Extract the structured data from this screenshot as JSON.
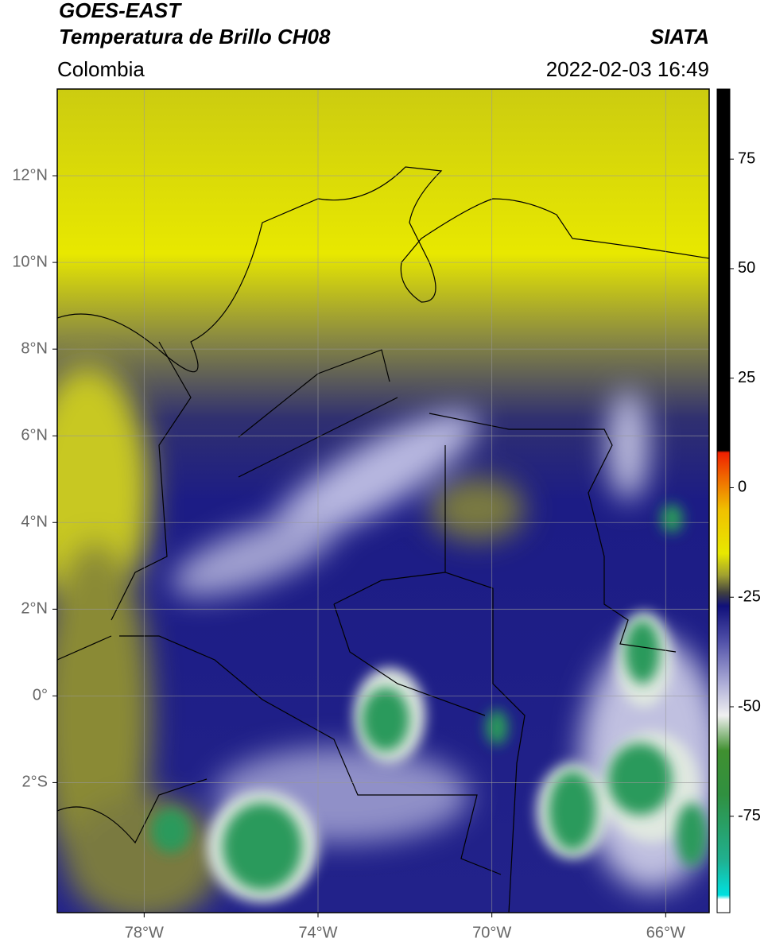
{
  "header": {
    "title": "GOES-EAST",
    "subtitle": "Temperatura de Brillo CH08",
    "source": "SIATA",
    "region": "Colombia",
    "timestamp": "2022-02-03 16:49"
  },
  "map": {
    "xlim": [
      -80,
      -65
    ],
    "ylim": [
      -5,
      14
    ],
    "grid": true,
    "lon_ticks": [
      {
        "value": -78,
        "label": "78°W"
      },
      {
        "value": -74,
        "label": "74°W"
      },
      {
        "value": -70,
        "label": "70°W"
      },
      {
        "value": -66,
        "label": "66°W"
      }
    ],
    "lat_ticks": [
      {
        "value": 12,
        "label": "12°N"
      },
      {
        "value": 10,
        "label": "10°N"
      },
      {
        "value": 8,
        "label": "8°N"
      },
      {
        "value": 6,
        "label": "6°N"
      },
      {
        "value": 4,
        "label": "4°N"
      },
      {
        "value": 2,
        "label": "2°N"
      },
      {
        "value": 0,
        "label": "0°"
      },
      {
        "value": -2,
        "label": "2°S"
      }
    ]
  },
  "colorbar": {
    "lim": [
      -97,
      91
    ],
    "ticks": [
      75,
      50,
      25,
      0,
      -25,
      -50,
      -75
    ],
    "stops": [
      {
        "value": -97,
        "color": "#ffffff"
      },
      {
        "value": -94,
        "color": "#ffffff"
      },
      {
        "value": -93,
        "color": "#00e0e0"
      },
      {
        "value": -85,
        "color": "#20b090"
      },
      {
        "value": -70,
        "color": "#309040"
      },
      {
        "value": -60,
        "color": "#409030"
      },
      {
        "value": -52,
        "color": "#f0f0f0"
      },
      {
        "value": -45,
        "color": "#b0b0d8"
      },
      {
        "value": -35,
        "color": "#5050a8"
      },
      {
        "value": -27,
        "color": "#10107a"
      },
      {
        "value": -24,
        "color": "#404040"
      },
      {
        "value": -20,
        "color": "#a0a030"
      },
      {
        "value": -15,
        "color": "#e8e800"
      },
      {
        "value": -5,
        "color": "#f0c000"
      },
      {
        "value": 3,
        "color": "#f06000"
      },
      {
        "value": 8,
        "color": "#f02000"
      },
      {
        "value": 8.5,
        "color": "#000000"
      },
      {
        "value": 91,
        "color": "#000000"
      }
    ]
  }
}
